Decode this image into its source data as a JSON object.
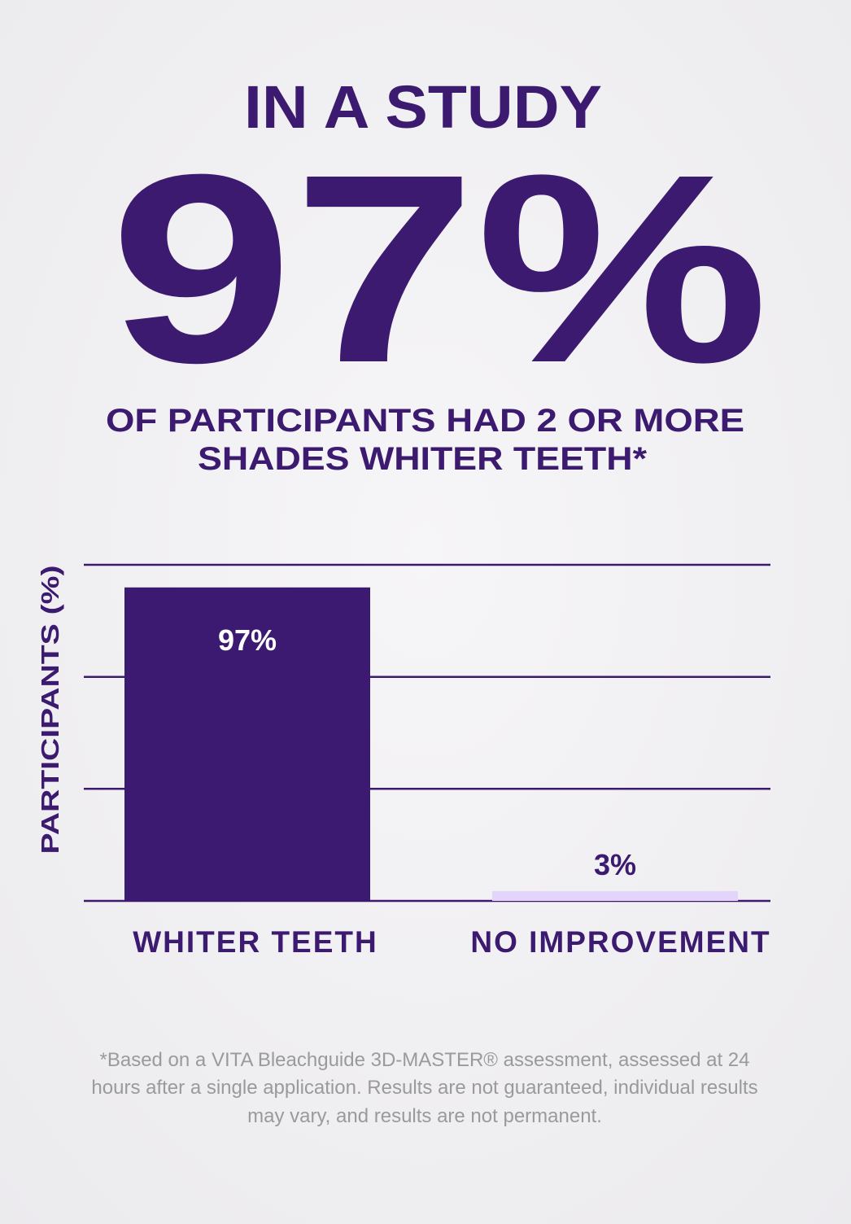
{
  "chart_data": {
    "type": "bar",
    "title": "IN A STUDY",
    "headline_stat": "97%",
    "subtitle": [
      "OF PARTICIPANTS HAD 2 OR MORE",
      "SHADES WHITER TEETH*"
    ],
    "y_label": "PARTICIPANTS (%)",
    "categories": [
      "WHITER TEETH",
      "NO IMPROVEMENT"
    ],
    "values": [
      97,
      3
    ],
    "value_labels": [
      "97%",
      "3%"
    ],
    "colors": [
      "#3d1a72",
      "#e2d4fa"
    ],
    "ylim": [
      0,
      104
    ],
    "yticks": [
      0,
      34.7,
      69.3,
      104
    ],
    "grid": true,
    "footnote": [
      "*Based on a VITA Bleachguide 3D-MASTER® assessment, assessed at 24",
      "hours after a single application. Results are not guaranteed, individual results",
      "may vary, and results are not permanent."
    ]
  }
}
